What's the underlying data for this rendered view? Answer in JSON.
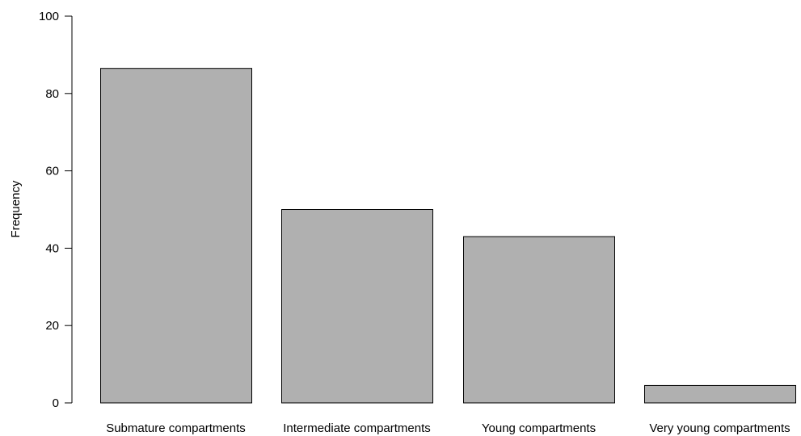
{
  "chart_data": {
    "type": "bar",
    "categories": [
      "Submature compartments",
      "Intermediate compartments",
      "Young compartments",
      "Very young compartments"
    ],
    "values": [
      86.5,
      50,
      43,
      4.5
    ],
    "title": "",
    "xlabel": "",
    "ylabel": "Frequency",
    "ylim": [
      0,
      100
    ],
    "yticks": [
      0,
      20,
      40,
      60,
      80,
      100
    ],
    "grid": false,
    "colors": {
      "bar_fill": "#b0b0b0",
      "bar_stroke": "#000000",
      "axis": "#000000"
    }
  }
}
